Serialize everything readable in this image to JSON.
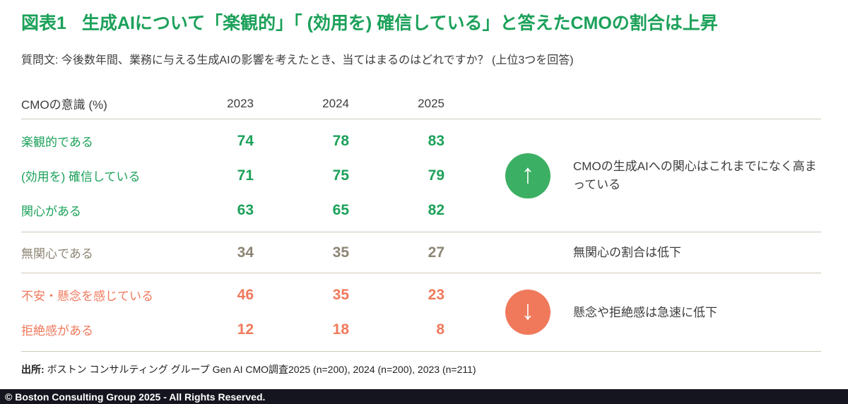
{
  "title_prefix": "図表1",
  "title_main": "生成AIについて「楽観的」「 (効用を) 確信している」と答えたCMOの割合は上昇",
  "question": "質問文: 今後数年間、業務に与える生成AIの影響を考えたとき、当てはまるのはどれですか？ (上位3つを回答)",
  "table": {
    "header_label": "CMOの意識 (%)",
    "years": [
      "2023",
      "2024",
      "2025"
    ],
    "groups": [
      {
        "tone": "green",
        "rows": [
          {
            "label": "楽観的である",
            "values": [
              74,
              78,
              83
            ]
          },
          {
            "label": "(効用を) 確信している",
            "values": [
              71,
              75,
              79
            ]
          },
          {
            "label": "関心がある",
            "values": [
              63,
              65,
              82
            ]
          }
        ],
        "annotation": {
          "icon": "up-arrow-icon",
          "arrow": "↑",
          "text": "CMOの生成AIへの関心はこれまでになく高まっている"
        }
      },
      {
        "tone": "gray",
        "rows": [
          {
            "label": "無関心である",
            "values": [
              34,
              35,
              27
            ]
          }
        ],
        "annotation": {
          "icon": "",
          "arrow": "",
          "text": "無関心の割合は低下"
        }
      },
      {
        "tone": "salmon",
        "rows": [
          {
            "label": "不安・懸念を感じている",
            "values": [
              46,
              35,
              23
            ]
          },
          {
            "label": "拒絶感がある",
            "values": [
              12,
              18,
              8
            ]
          }
        ],
        "annotation": {
          "icon": "down-arrow-icon",
          "arrow": "↓",
          "text": "懸念や拒絶感は急速に低下"
        }
      }
    ]
  },
  "source": {
    "prefix": "出所:",
    "text": "ボストン コンサルティング グループ Gen AI CMO調査2025 (n=200), 2024 (n=200), 2023 (n=211)"
  },
  "footer": "© Boston Consulting Group 2025 - All Rights Reserved.",
  "colors": {
    "green": "#1CA15A",
    "salmon": "#F0795C",
    "gray": "#8D8574",
    "dark": "#3D3D3D",
    "line": "#CFC8BA",
    "footer_bg": "#15151F"
  },
  "chart_data": {
    "type": "table",
    "title": "図表1 生成AIについて「楽観的」「 (効用を) 確信している」と答えたCMOの割合は上昇",
    "categories": [
      "2023",
      "2024",
      "2025"
    ],
    "series": [
      {
        "name": "楽観的である",
        "values": [
          74,
          78,
          83
        ],
        "group": "positive",
        "color": "#1CA15A"
      },
      {
        "name": "(効用を) 確信している",
        "values": [
          71,
          75,
          79
        ],
        "group": "positive",
        "color": "#1CA15A"
      },
      {
        "name": "関心がある",
        "values": [
          63,
          65,
          82
        ],
        "group": "positive",
        "color": "#1CA15A"
      },
      {
        "name": "無関心である",
        "values": [
          34,
          35,
          27
        ],
        "group": "neutral",
        "color": "#8D8574"
      },
      {
        "name": "不安・懸念を感じている",
        "values": [
          46,
          35,
          23
        ],
        "group": "negative",
        "color": "#F0795C"
      },
      {
        "name": "拒絶感がある",
        "values": [
          12,
          18,
          8
        ],
        "group": "negative",
        "color": "#F0795C"
      }
    ],
    "unit": "%",
    "annotations": [
      "CMOの生成AIへの関心はこれまでになく高まっている",
      "無関心の割合は低下",
      "懸念や拒絶感は急速に低下"
    ]
  }
}
